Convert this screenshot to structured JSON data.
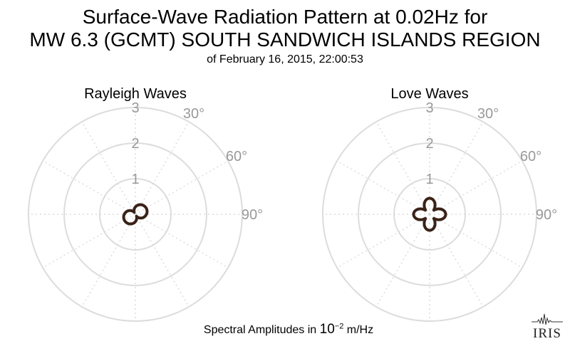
{
  "title": {
    "line1": "Surface-Wave Radiation Pattern at 0.02Hz for",
    "line2": "MW 6.3 (GCMT) SOUTH SANDWICH ISLANDS REGION",
    "subtitle": "of February 16, 2015, 22:00:53"
  },
  "footer": {
    "prefix": "Spectral Amplitudes in ",
    "base": "10",
    "exponent": "−2",
    "unit": " m/Hz"
  },
  "logo": {
    "text": "IRIS"
  },
  "colors": {
    "pattern": "#3a2218",
    "grid": "#dcdcdc",
    "label": "#999999"
  },
  "chart_data": [
    {
      "type": "polar",
      "title": "Rayleigh Waves",
      "r_ticks": [
        "1",
        "2",
        "3"
      ],
      "theta_ticks": [
        "30°",
        "60°",
        "90°"
      ],
      "r_range": [
        0,
        3
      ],
      "theta_zero": "north",
      "theta_direction": "clockwise",
      "grid": true,
      "pattern": {
        "shape": "two-lobe",
        "max_amplitude": 0.35,
        "lobe_azimuth_deg": 60
      }
    },
    {
      "type": "polar",
      "title": "Love Waves",
      "r_ticks": [
        "1",
        "2",
        "3"
      ],
      "theta_ticks": [
        "30°",
        "60°",
        "90°"
      ],
      "r_range": [
        0,
        3
      ],
      "theta_zero": "north",
      "theta_direction": "clockwise",
      "grid": true,
      "pattern": {
        "shape": "four-lobe",
        "max_amplitude": 0.45,
        "lobe_azimuth_deg": 0
      }
    }
  ]
}
